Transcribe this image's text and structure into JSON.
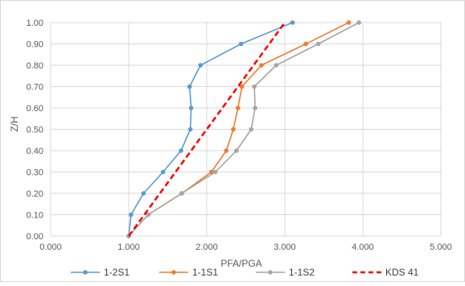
{
  "chart_data": {
    "type": "line",
    "title": "",
    "xlabel": "PFA/PGA",
    "ylabel": "Z/H",
    "xlim": [
      0,
      5
    ],
    "ylim": [
      0,
      1
    ],
    "x_ticks": [
      "0.000",
      "1.000",
      "2.000",
      "3.000",
      "4.000",
      "5.000"
    ],
    "y_ticks": [
      "0.00",
      "0.10",
      "0.20",
      "0.30",
      "0.40",
      "0.50",
      "0.60",
      "0.70",
      "0.80",
      "0.90",
      "1.00"
    ],
    "grid": true,
    "legend_position": "bottom",
    "series": [
      {
        "name": "1-2S1",
        "color": "#5B9BD5",
        "marker": "circle",
        "line": "solid",
        "points": [
          {
            "x": 1.0,
            "y": 0.0
          },
          {
            "x": 1.03,
            "y": 0.1
          },
          {
            "x": 1.19,
            "y": 0.2
          },
          {
            "x": 1.44,
            "y": 0.3
          },
          {
            "x": 1.67,
            "y": 0.4
          },
          {
            "x": 1.79,
            "y": 0.5
          },
          {
            "x": 1.8,
            "y": 0.6
          },
          {
            "x": 1.78,
            "y": 0.7
          },
          {
            "x": 1.92,
            "y": 0.8
          },
          {
            "x": 2.44,
            "y": 0.9
          },
          {
            "x": 3.1,
            "y": 1.0
          }
        ]
      },
      {
        "name": "1-1S1",
        "color": "#ED7D31",
        "marker": "circle",
        "line": "solid",
        "points": [
          {
            "x": 1.0,
            "y": 0.0
          },
          {
            "x": 1.25,
            "y": 0.1
          },
          {
            "x": 1.68,
            "y": 0.2
          },
          {
            "x": 2.06,
            "y": 0.3
          },
          {
            "x": 2.25,
            "y": 0.4
          },
          {
            "x": 2.34,
            "y": 0.5
          },
          {
            "x": 2.4,
            "y": 0.6
          },
          {
            "x": 2.45,
            "y": 0.7
          },
          {
            "x": 2.7,
            "y": 0.8
          },
          {
            "x": 3.27,
            "y": 0.9
          },
          {
            "x": 3.82,
            "y": 1.0
          }
        ]
      },
      {
        "name": "1-1S2",
        "color": "#A5A5A5",
        "marker": "circle",
        "line": "solid",
        "points": [
          {
            "x": 1.0,
            "y": 0.0
          },
          {
            "x": 1.25,
            "y": 0.1
          },
          {
            "x": 1.68,
            "y": 0.2
          },
          {
            "x": 2.11,
            "y": 0.3
          },
          {
            "x": 2.38,
            "y": 0.4
          },
          {
            "x": 2.57,
            "y": 0.5
          },
          {
            "x": 2.62,
            "y": 0.6
          },
          {
            "x": 2.61,
            "y": 0.7
          },
          {
            "x": 2.89,
            "y": 0.8
          },
          {
            "x": 3.43,
            "y": 0.9
          },
          {
            "x": 3.95,
            "y": 1.0
          }
        ]
      },
      {
        "name": "KDS 41",
        "color": "#FF0000",
        "marker": "none",
        "line": "dashed",
        "points": [
          {
            "x": 1.0,
            "y": 0.0
          },
          {
            "x": 3.0,
            "y": 1.0
          }
        ]
      }
    ]
  }
}
